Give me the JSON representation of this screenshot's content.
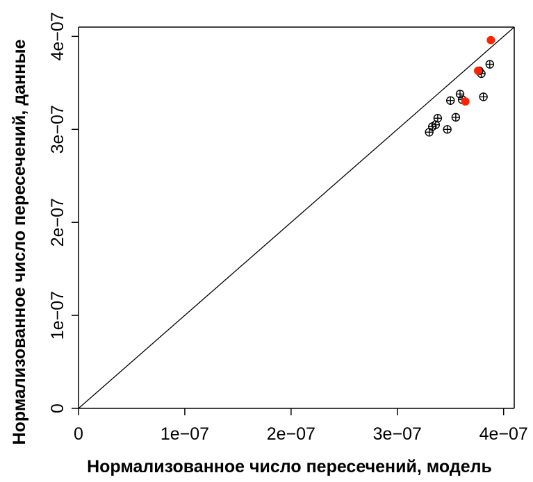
{
  "chart_data": {
    "type": "scatter",
    "title": "",
    "xlabel": "Нормализованное число пересечений, модель",
    "ylabel": "Нормализованное число пересечений, данные",
    "xlim": [
      0,
      4.1e-07
    ],
    "ylim": [
      0,
      4.1e-07
    ],
    "x_ticks": [
      0,
      1e-07,
      2e-07,
      3e-07,
      4e-07
    ],
    "x_tick_labels": [
      "0",
      "1e−07",
      "2e−07",
      "3e−07",
      "4e−07"
    ],
    "y_ticks": [
      0,
      1e-07,
      2e-07,
      3e-07,
      4e-07
    ],
    "y_tick_labels": [
      "0",
      "1e−07",
      "2e−07",
      "3e−07",
      "4e−07"
    ],
    "grid": false,
    "reference_line": {
      "type": "y=x",
      "color": "#000000"
    },
    "series": [
      {
        "marker": "circle-plus",
        "color": "#000000",
        "points": [
          {
            "x": 3.3e-07,
            "y": 2.97e-07
          },
          {
            "x": 3.33e-07,
            "y": 3.03e-07
          },
          {
            "x": 3.36e-07,
            "y": 3.05e-07
          },
          {
            "x": 3.38e-07,
            "y": 3.12e-07
          },
          {
            "x": 3.47e-07,
            "y": 3e-07
          },
          {
            "x": 3.5e-07,
            "y": 3.31e-07
          },
          {
            "x": 3.55e-07,
            "y": 3.13e-07
          },
          {
            "x": 3.59e-07,
            "y": 3.38e-07
          },
          {
            "x": 3.61e-07,
            "y": 3.32e-07
          },
          {
            "x": 3.77e-07,
            "y": 3.63e-07
          },
          {
            "x": 3.79e-07,
            "y": 3.6e-07
          },
          {
            "x": 3.81e-07,
            "y": 3.35e-07
          },
          {
            "x": 3.87e-07,
            "y": 3.7e-07
          }
        ]
      },
      {
        "marker": "filled-circle",
        "color": "#ff2200",
        "points": [
          {
            "x": 3.64e-07,
            "y": 3.3e-07
          },
          {
            "x": 3.76e-07,
            "y": 3.63e-07
          },
          {
            "x": 3.88e-07,
            "y": 3.96e-07
          }
        ]
      }
    ]
  }
}
